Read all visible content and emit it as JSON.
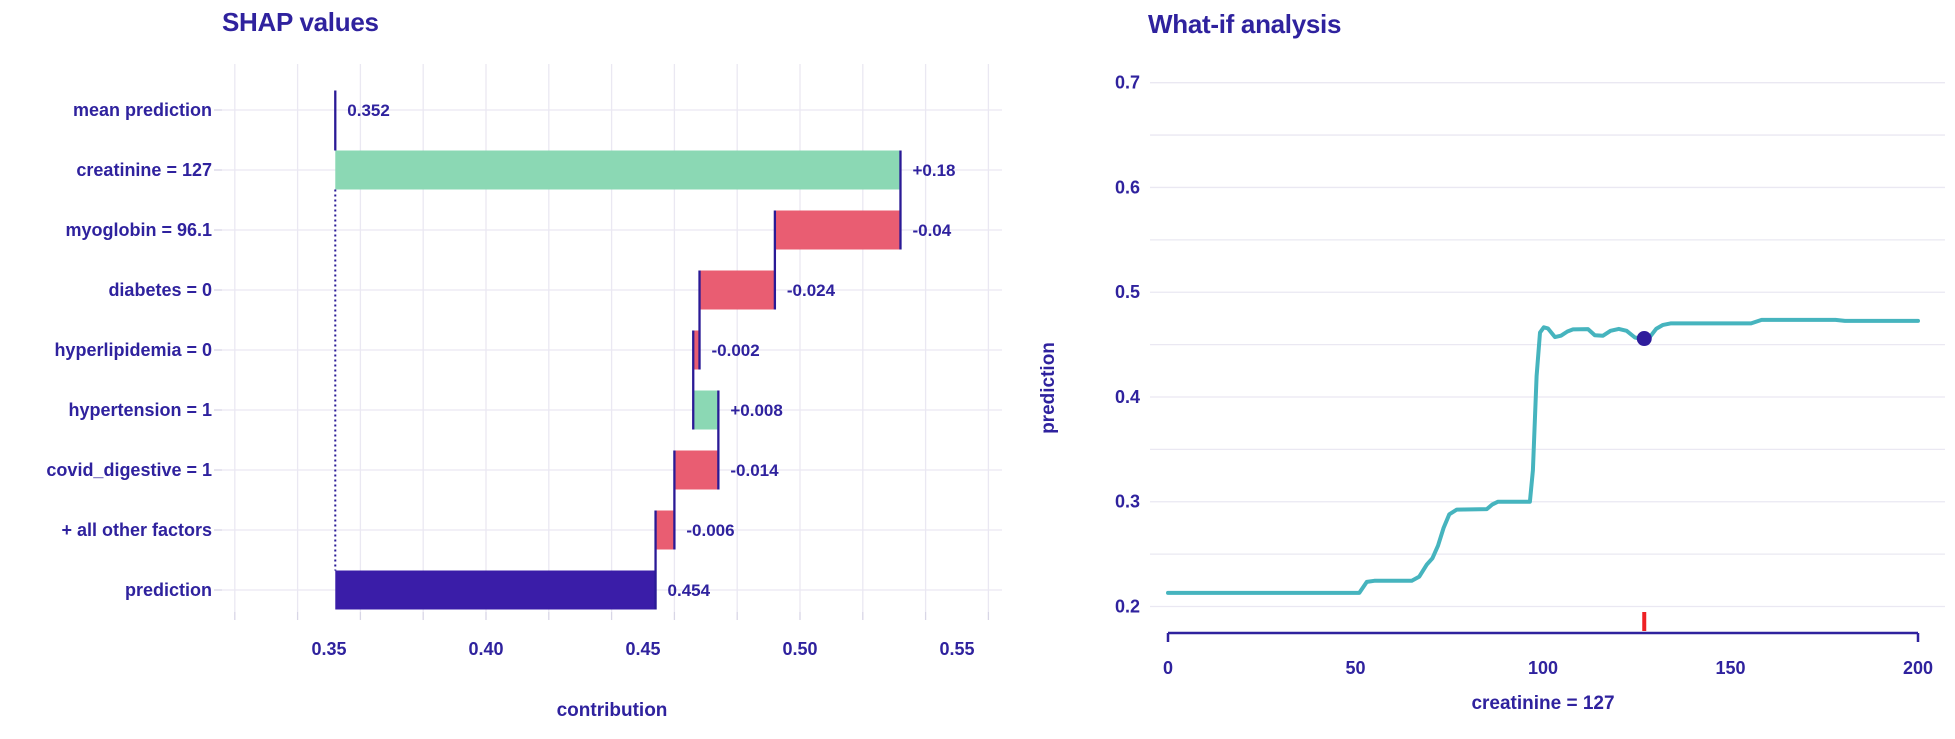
{
  "page": {
    "left_chart_title": "SHAP values",
    "right_chart_title": "What-if analysis"
  },
  "colors": {
    "text": "#2f229e",
    "positive_bar": "#8bd8b4",
    "negative_bar": "#e95d72",
    "total_bar": "#3a1da8",
    "connector": "#2a1a96",
    "gridline": "#eae8f2",
    "tick_stub": "#d8d6e6",
    "line": "#46b4be",
    "marker_dot": "#2f1d9c",
    "axis_line": "#2f229e",
    "current_value_tick": "#ee2124"
  },
  "chart_data": [
    {
      "type": "bar",
      "subtype": "waterfall",
      "title": "SHAP values",
      "xlabel": "contribution",
      "ylabel": "",
      "x_tick_labels": [
        "0.35",
        "0.40",
        "0.45",
        "0.50",
        "0.55"
      ],
      "x_tick_values": [
        0.35,
        0.4,
        0.45,
        0.5,
        0.55
      ],
      "x_grid_range": [
        0.32,
        0.56
      ],
      "x_grid_step": 0.02,
      "grid": true,
      "base_value": 0.352,
      "rows": [
        {
          "label": "mean prediction",
          "kind": "marker",
          "start": 0.352,
          "end": 0.352,
          "value": 0.352,
          "value_label": "0.352"
        },
        {
          "label": "creatinine = 127",
          "kind": "pos",
          "start": 0.352,
          "end": 0.532,
          "value": 0.18,
          "value_label": "+0.18"
        },
        {
          "label": "myoglobin = 96.1",
          "kind": "neg",
          "start": 0.532,
          "end": 0.492,
          "value": -0.04,
          "value_label": "-0.04"
        },
        {
          "label": "diabetes = 0",
          "kind": "neg",
          "start": 0.492,
          "end": 0.468,
          "value": -0.024,
          "value_label": "-0.024"
        },
        {
          "label": "hyperlipidemia = 0",
          "kind": "neg",
          "start": 0.468,
          "end": 0.466,
          "value": -0.002,
          "value_label": "-0.002"
        },
        {
          "label": "hypertension = 1",
          "kind": "pos",
          "start": 0.466,
          "end": 0.474,
          "value": 0.008,
          "value_label": "+0.008"
        },
        {
          "label": "covid_digestive = 1",
          "kind": "neg",
          "start": 0.474,
          "end": 0.46,
          "value": -0.014,
          "value_label": "-0.014"
        },
        {
          "label": "+ all other factors",
          "kind": "neg",
          "start": 0.46,
          "end": 0.454,
          "value": -0.006,
          "value_label": "-0.006"
        },
        {
          "label": "prediction",
          "kind": "total",
          "start": 0.352,
          "end": 0.454,
          "value": 0.454,
          "value_label": "0.454"
        }
      ]
    },
    {
      "type": "line",
      "title": "What-if analysis",
      "xlabel": "creatinine = 127",
      "ylabel": "prediction",
      "x_tick_labels": [
        "0",
        "50",
        "100",
        "150",
        "200"
      ],
      "x_tick_values": [
        0,
        50,
        100,
        150,
        200
      ],
      "x_range": [
        0,
        200
      ],
      "y_tick_labels": [
        "0.7",
        "0.6",
        "0.5",
        "0.4",
        "0.3",
        "0.2"
      ],
      "y_tick_values": [
        0.7,
        0.6,
        0.5,
        0.4,
        0.3,
        0.2
      ],
      "y_grid_range": [
        0.2,
        0.7
      ],
      "y_grid_step": 0.05,
      "grid": true,
      "legend": false,
      "selected_x": 127,
      "marker": {
        "x": 127,
        "y": 0.4558
      },
      "points": [
        [
          0,
          0.213
        ],
        [
          51,
          0.213
        ],
        [
          53,
          0.2235
        ],
        [
          55,
          0.2245
        ],
        [
          65,
          0.2245
        ],
        [
          67,
          0.2285
        ],
        [
          69,
          0.24
        ],
        [
          70.5,
          0.246
        ],
        [
          72,
          0.258
        ],
        [
          73.5,
          0.275
        ],
        [
          75,
          0.288
        ],
        [
          77,
          0.2925
        ],
        [
          85,
          0.293
        ],
        [
          86.5,
          0.2975
        ],
        [
          88,
          0.3
        ],
        [
          96.5,
          0.3
        ],
        [
          97.3,
          0.33
        ],
        [
          98.3,
          0.42
        ],
        [
          99.2,
          0.4615
        ],
        [
          100.2,
          0.4665
        ],
        [
          101.3,
          0.4655
        ],
        [
          103.2,
          0.4572
        ],
        [
          104.8,
          0.4585
        ],
        [
          106.5,
          0.4625
        ],
        [
          108,
          0.4645
        ],
        [
          112,
          0.4648
        ],
        [
          113.8,
          0.459
        ],
        [
          116,
          0.4585
        ],
        [
          118,
          0.4632
        ],
        [
          120.2,
          0.465
        ],
        [
          122.3,
          0.4632
        ],
        [
          124.5,
          0.4568
        ],
        [
          126.8,
          0.4552
        ],
        [
          128.6,
          0.4578
        ],
        [
          130.2,
          0.4652
        ],
        [
          132,
          0.4688
        ],
        [
          134,
          0.4702
        ],
        [
          155.5,
          0.4702
        ],
        [
          158.3,
          0.4736
        ],
        [
          178,
          0.4736
        ],
        [
          180.5,
          0.4726
        ],
        [
          200,
          0.4726
        ]
      ]
    }
  ]
}
